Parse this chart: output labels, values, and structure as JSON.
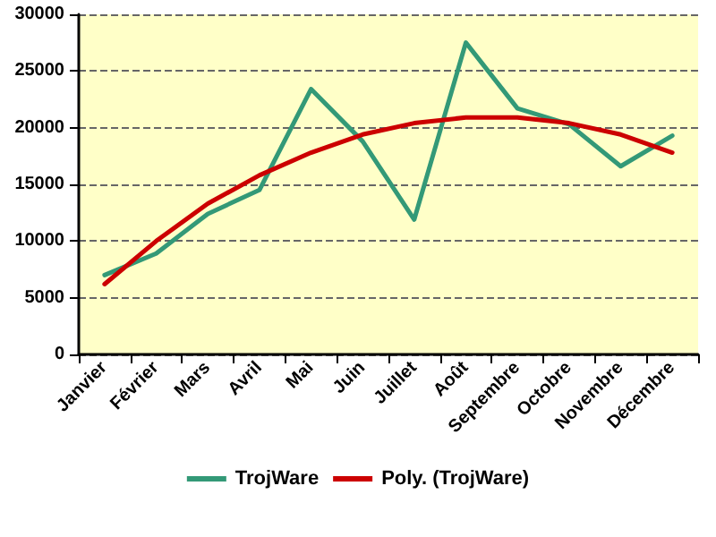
{
  "chart_data": {
    "type": "line",
    "categories": [
      "Janvier",
      "Février",
      "Mars",
      "Avril",
      "Mai",
      "Juin",
      "Juillet",
      "Août",
      "Septembre",
      "Octobre",
      "Novembre",
      "Décembre"
    ],
    "series": [
      {
        "name": "TrojWare",
        "color": "#339977",
        "values": [
          7000,
          8900,
          12400,
          14500,
          23400,
          18800,
          11900,
          27500,
          21700,
          20300,
          16600,
          19300
        ]
      },
      {
        "name": "Poly. (TrojWare)",
        "color": "#cc0000",
        "values": [
          6200,
          10000,
          13300,
          15800,
          17800,
          19400,
          20400,
          20900,
          20900,
          20400,
          19400,
          17800
        ]
      }
    ],
    "ylim": [
      0,
      30000
    ],
    "yticks": [
      0,
      5000,
      10000,
      15000,
      20000,
      25000,
      30000
    ],
    "grid": "y",
    "legend": "bottom",
    "marker": "none",
    "line_style": "solid"
  }
}
